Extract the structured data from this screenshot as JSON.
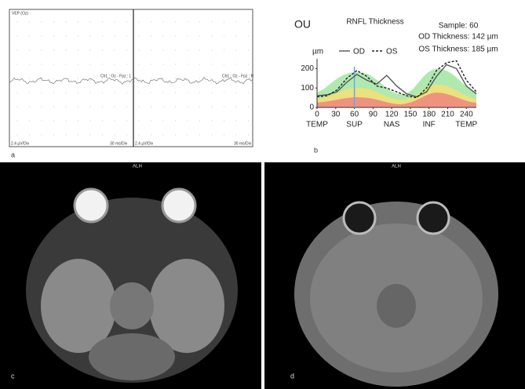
{
  "panel_labels": [
    "a",
    "b",
    "c",
    "d"
  ],
  "vep": {
    "title": "VEP (Oz)",
    "channel_left": "Ch1 : Oz - Fpz : L",
    "channel_right": "Ch1 : Oz - Fpz : R",
    "scale_left_1": "2.4 µV/Div",
    "scale_left_2": "30 ms/Div",
    "scale_right_1": "2.4 µV/Div",
    "scale_right_2": "30 ms/Div"
  },
  "mri": {
    "left_label": "ALH",
    "right_label": "ALH"
  },
  "chart_data": {
    "type": "line",
    "eye_label": "OU",
    "title": "RNFL Thickness",
    "y_unit": "µm",
    "sample": 60,
    "sample_label": "Sample: 60",
    "od_thickness": "OD Thickness: 142 µm",
    "os_thickness": "OS Thickness: 185 µm",
    "x": [
      0,
      16,
      32,
      48,
      64,
      80,
      96,
      112,
      128,
      144,
      160,
      176,
      192,
      208,
      224,
      240,
      256
    ],
    "series": [
      {
        "name": "OD",
        "color": "#555555",
        "dash": false,
        "values": [
          60,
          65,
          80,
          130,
          170,
          140,
          120,
          165,
          110,
          70,
          55,
          80,
          160,
          220,
          200,
          110,
          70
        ]
      },
      {
        "name": "OS",
        "color": "#222222",
        "dash": true,
        "values": [
          55,
          60,
          90,
          150,
          190,
          160,
          110,
          100,
          80,
          60,
          50,
          100,
          190,
          230,
          240,
          140,
          80
        ]
      }
    ],
    "xlim": [
      0,
      256
    ],
    "ylim": [
      0,
      250
    ],
    "xticks": [
      0,
      30,
      60,
      90,
      120,
      150,
      180,
      210,
      240
    ],
    "yticks": [
      0,
      100,
      200
    ],
    "region_labels": [
      {
        "value": 0,
        "label": "TEMP"
      },
      {
        "value": 60,
        "label": "SUP"
      },
      {
        "value": 120,
        "label": "NAS"
      },
      {
        "value": 180,
        "label": "INF"
      },
      {
        "value": 240,
        "label": "TEMP"
      }
    ]
  }
}
